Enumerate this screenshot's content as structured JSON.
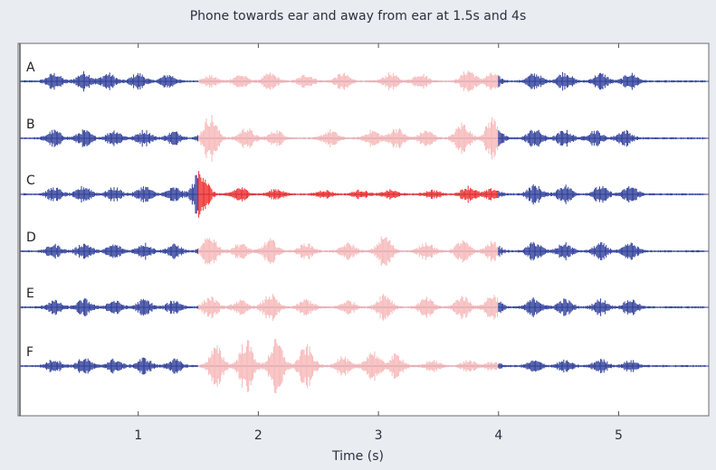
{
  "chart_data": {
    "type": "line",
    "title": "Phone towards ear and away from ear at 1.5s and 4s",
    "xlabel": "Time (s)",
    "ylabel": "",
    "xlim": [
      0.0,
      5.75
    ],
    "xticks": [
      1,
      2,
      3,
      4,
      5
    ],
    "grid": false,
    "series": [
      {
        "name": "A",
        "highlight_range": [
          1.5,
          4.0
        ],
        "highlight_color": "#f7b8b8",
        "bursts": [
          {
            "t": 0.3,
            "a": 0.3
          },
          {
            "t": 0.55,
            "a": 0.35
          },
          {
            "t": 0.75,
            "a": 0.3
          },
          {
            "t": 1.0,
            "a": 0.3
          },
          {
            "t": 1.25,
            "a": 0.25
          },
          {
            "t": 1.6,
            "a": 0.2
          },
          {
            "t": 1.85,
            "a": 0.25
          },
          {
            "t": 2.1,
            "a": 0.3
          },
          {
            "t": 2.4,
            "a": 0.25
          },
          {
            "t": 2.7,
            "a": 0.3
          },
          {
            "t": 3.1,
            "a": 0.3
          },
          {
            "t": 3.35,
            "a": 0.3
          },
          {
            "t": 3.75,
            "a": 0.45
          },
          {
            "t": 3.95,
            "a": 0.3
          },
          {
            "t": 4.3,
            "a": 0.3
          },
          {
            "t": 4.55,
            "a": 0.35
          },
          {
            "t": 4.85,
            "a": 0.3
          },
          {
            "t": 5.1,
            "a": 0.3
          }
        ]
      },
      {
        "name": "B",
        "highlight_range": [
          1.5,
          4.0
        ],
        "highlight_color": "#f7b8b8",
        "bursts": [
          {
            "t": 0.3,
            "a": 0.3
          },
          {
            "t": 0.55,
            "a": 0.3
          },
          {
            "t": 0.8,
            "a": 0.3
          },
          {
            "t": 1.05,
            "a": 0.3
          },
          {
            "t": 1.3,
            "a": 0.25
          },
          {
            "t": 1.6,
            "a": 0.9
          },
          {
            "t": 1.9,
            "a": 0.4
          },
          {
            "t": 2.15,
            "a": 0.3
          },
          {
            "t": 2.6,
            "a": 0.3
          },
          {
            "t": 2.95,
            "a": 0.3
          },
          {
            "t": 3.15,
            "a": 0.4
          },
          {
            "t": 3.4,
            "a": 0.3
          },
          {
            "t": 3.7,
            "a": 0.6
          },
          {
            "t": 3.95,
            "a": 0.8
          },
          {
            "t": 4.3,
            "a": 0.35
          },
          {
            "t": 4.55,
            "a": 0.3
          },
          {
            "t": 4.8,
            "a": 0.3
          },
          {
            "t": 5.05,
            "a": 0.3
          }
        ]
      },
      {
        "name": "C",
        "highlight_range": [
          1.5,
          4.0
        ],
        "highlight_color": "#ee2b2b",
        "bursts": [
          {
            "t": 0.3,
            "a": 0.25
          },
          {
            "t": 0.55,
            "a": 0.3
          },
          {
            "t": 0.8,
            "a": 0.25
          },
          {
            "t": 1.05,
            "a": 0.3
          },
          {
            "t": 1.3,
            "a": 0.25
          },
          {
            "t": 1.52,
            "a": 1.0
          },
          {
            "t": 1.85,
            "a": 0.25
          },
          {
            "t": 2.15,
            "a": 0.2
          },
          {
            "t": 2.55,
            "a": 0.15
          },
          {
            "t": 2.85,
            "a": 0.15
          },
          {
            "t": 3.1,
            "a": 0.15
          },
          {
            "t": 3.45,
            "a": 0.15
          },
          {
            "t": 3.75,
            "a": 0.3
          },
          {
            "t": 3.95,
            "a": 0.2
          },
          {
            "t": 4.3,
            "a": 0.35
          },
          {
            "t": 4.55,
            "a": 0.35
          },
          {
            "t": 4.85,
            "a": 0.3
          },
          {
            "t": 5.1,
            "a": 0.3
          }
        ]
      },
      {
        "name": "D",
        "highlight_range": [
          1.5,
          4.0
        ],
        "highlight_color": "#f7b8b8",
        "bursts": [
          {
            "t": 0.3,
            "a": 0.25
          },
          {
            "t": 0.55,
            "a": 0.3
          },
          {
            "t": 0.8,
            "a": 0.25
          },
          {
            "t": 1.05,
            "a": 0.3
          },
          {
            "t": 1.3,
            "a": 0.25
          },
          {
            "t": 1.6,
            "a": 0.6
          },
          {
            "t": 1.85,
            "a": 0.3
          },
          {
            "t": 2.1,
            "a": 0.45
          },
          {
            "t": 2.4,
            "a": 0.3
          },
          {
            "t": 2.75,
            "a": 0.3
          },
          {
            "t": 3.05,
            "a": 0.6
          },
          {
            "t": 3.4,
            "a": 0.35
          },
          {
            "t": 3.7,
            "a": 0.4
          },
          {
            "t": 3.95,
            "a": 0.35
          },
          {
            "t": 4.3,
            "a": 0.35
          },
          {
            "t": 4.55,
            "a": 0.3
          },
          {
            "t": 4.85,
            "a": 0.3
          },
          {
            "t": 5.1,
            "a": 0.3
          }
        ]
      },
      {
        "name": "E",
        "highlight_range": [
          1.5,
          4.0
        ],
        "highlight_color": "#f7b8b8",
        "bursts": [
          {
            "t": 0.3,
            "a": 0.25
          },
          {
            "t": 0.55,
            "a": 0.3
          },
          {
            "t": 0.8,
            "a": 0.25
          },
          {
            "t": 1.05,
            "a": 0.3
          },
          {
            "t": 1.3,
            "a": 0.25
          },
          {
            "t": 1.6,
            "a": 0.4
          },
          {
            "t": 1.85,
            "a": 0.25
          },
          {
            "t": 2.1,
            "a": 0.5
          },
          {
            "t": 2.4,
            "a": 0.3
          },
          {
            "t": 2.75,
            "a": 0.25
          },
          {
            "t": 3.05,
            "a": 0.55
          },
          {
            "t": 3.4,
            "a": 0.35
          },
          {
            "t": 3.7,
            "a": 0.45
          },
          {
            "t": 3.95,
            "a": 0.5
          },
          {
            "t": 4.3,
            "a": 0.35
          },
          {
            "t": 4.55,
            "a": 0.3
          },
          {
            "t": 4.85,
            "a": 0.3
          },
          {
            "t": 5.1,
            "a": 0.3
          }
        ]
      },
      {
        "name": "F",
        "highlight_range": [
          1.5,
          4.0
        ],
        "highlight_color": "#f7b8b8",
        "bursts": [
          {
            "t": 0.3,
            "a": 0.25
          },
          {
            "t": 0.55,
            "a": 0.3
          },
          {
            "t": 0.8,
            "a": 0.25
          },
          {
            "t": 1.05,
            "a": 0.3
          },
          {
            "t": 1.3,
            "a": 0.25
          },
          {
            "t": 1.65,
            "a": 0.75
          },
          {
            "t": 1.9,
            "a": 1.0
          },
          {
            "t": 2.15,
            "a": 1.0
          },
          {
            "t": 2.4,
            "a": 0.8
          },
          {
            "t": 2.7,
            "a": 0.35
          },
          {
            "t": 2.95,
            "a": 0.6
          },
          {
            "t": 3.15,
            "a": 0.45
          },
          {
            "t": 3.45,
            "a": 0.2
          },
          {
            "t": 3.75,
            "a": 0.2
          },
          {
            "t": 3.95,
            "a": 0.15
          },
          {
            "t": 4.3,
            "a": 0.2
          },
          {
            "t": 4.55,
            "a": 0.2
          },
          {
            "t": 4.85,
            "a": 0.25
          },
          {
            "t": 5.1,
            "a": 0.2
          }
        ]
      }
    ],
    "base_color": "#2e3e99"
  }
}
